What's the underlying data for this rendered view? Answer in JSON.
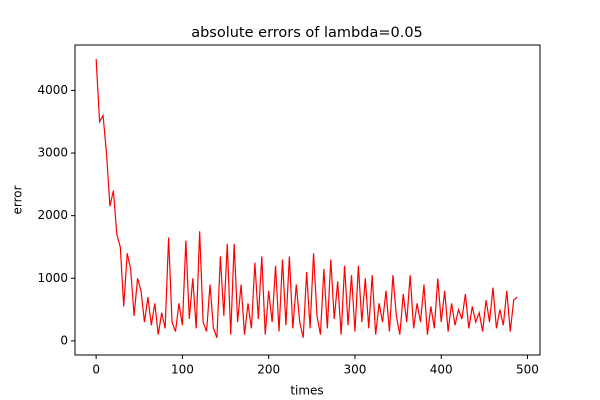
{
  "chart_data": {
    "type": "line",
    "title": "absolute errors of lambda=0.05",
    "x_label": "times",
    "y_label": "error",
    "x": [
      0,
      4,
      8,
      12,
      16,
      20,
      24,
      28,
      32,
      36,
      40,
      44,
      48,
      52,
      56,
      60,
      64,
      68,
      72,
      76,
      80,
      84,
      88,
      92,
      96,
      100,
      104,
      108,
      112,
      116,
      120,
      124,
      128,
      132,
      136,
      140,
      144,
      148,
      152,
      156,
      160,
      164,
      168,
      172,
      176,
      180,
      184,
      188,
      192,
      196,
      200,
      204,
      208,
      212,
      216,
      220,
      224,
      228,
      232,
      236,
      240,
      244,
      248,
      252,
      256,
      260,
      264,
      268,
      272,
      276,
      280,
      284,
      288,
      292,
      296,
      300,
      304,
      308,
      312,
      316,
      320,
      324,
      328,
      332,
      336,
      340,
      344,
      348,
      352,
      356,
      360,
      364,
      368,
      372,
      376,
      380,
      384,
      388,
      392,
      396,
      400,
      404,
      408,
      412,
      416,
      420,
      424,
      428,
      432,
      436,
      440,
      444,
      448,
      452,
      456,
      460,
      464,
      468,
      472,
      476,
      480,
      484,
      488
    ],
    "series": [
      {
        "name": "error",
        "color": "#ff0000",
        "values": [
          4500,
          3500,
          3600,
          3000,
          2150,
          2400,
          1700,
          1500,
          550,
          1400,
          1150,
          400,
          1000,
          800,
          300,
          700,
          250,
          600,
          100,
          450,
          200,
          1650,
          300,
          150,
          600,
          250,
          1600,
          350,
          1000,
          200,
          1750,
          300,
          150,
          900,
          200,
          50,
          1350,
          400,
          1550,
          100,
          1550,
          300,
          900,
          100,
          600,
          200,
          1250,
          350,
          1350,
          100,
          800,
          300,
          1200,
          150,
          1300,
          250,
          1350,
          200,
          900,
          300,
          50,
          1100,
          200,
          1400,
          400,
          100,
          1150,
          200,
          1300,
          350,
          950,
          100,
          1200,
          250,
          1050,
          150,
          1200,
          300,
          1000,
          200,
          1050,
          100,
          600,
          300,
          800,
          150,
          1050,
          400,
          100,
          750,
          300,
          1050,
          200,
          600,
          300,
          900,
          100,
          550,
          200,
          1000,
          300,
          800,
          150,
          600,
          250,
          500,
          350,
          750,
          200,
          550,
          300,
          450,
          150,
          650,
          300,
          850,
          200,
          500,
          250,
          800,
          150,
          650,
          700
        ]
      }
    ],
    "xlim": [
      -24.5,
      514.5
    ],
    "ylim": [
      -225,
      4725
    ],
    "xticks": [
      0,
      100,
      200,
      300,
      400,
      500
    ],
    "yticks": [
      0,
      1000,
      2000,
      3000,
      4000
    ],
    "grid": false
  }
}
